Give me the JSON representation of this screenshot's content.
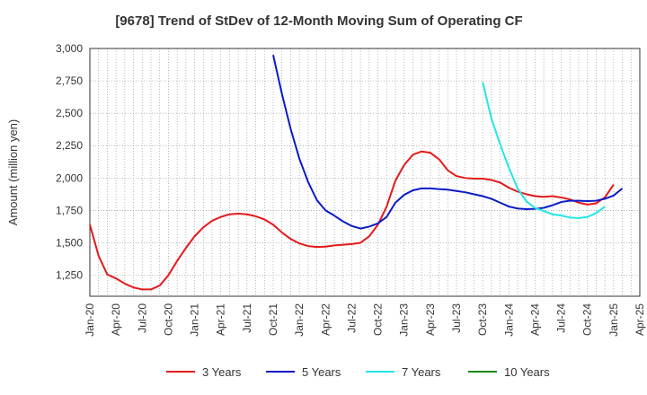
{
  "chart_data": {
    "type": "line",
    "title": "[9678]  Trend of StDev of 12-Month Moving Sum of Operating CF",
    "ylabel": "Amount (million yen)",
    "xlabel": "",
    "ylim": [
      1087.5,
      3000
    ],
    "yticks": [
      1250,
      1500,
      1750,
      2000,
      2250,
      2500,
      2750,
      3000
    ],
    "ytick_labels": [
      "1,250",
      "1,500",
      "1,750",
      "2,000",
      "2,250",
      "2,500",
      "2,750",
      "3,000"
    ],
    "xtick_labels": [
      "Jan-20",
      "Apr-20",
      "Jul-20",
      "Oct-20",
      "Jan-21",
      "Apr-21",
      "Jul-21",
      "Oct-21",
      "Jan-22",
      "Apr-22",
      "Jul-22",
      "Oct-22",
      "Jan-23",
      "Apr-23",
      "Jul-23",
      "Oct-23",
      "Jan-24",
      "Apr-24",
      "Jul-24",
      "Oct-24",
      "Jan-25",
      "Apr-25"
    ],
    "grid": true,
    "legend_position": "bottom",
    "series": [
      {
        "name": "3 Years",
        "color": "#e41a1c",
        "start": "Jan-20",
        "values": [
          1640,
          1400,
          1255,
          1225,
          1185,
          1155,
          1140,
          1140,
          1170,
          1250,
          1360,
          1460,
          1550,
          1620,
          1670,
          1700,
          1720,
          1725,
          1720,
          1705,
          1680,
          1640,
          1580,
          1530,
          1495,
          1475,
          1468,
          1470,
          1480,
          1485,
          1490,
          1500,
          1550,
          1640,
          1780,
          1980,
          2100,
          2180,
          2205,
          2195,
          2145,
          2060,
          2015,
          2000,
          1995,
          1995,
          1985,
          1965,
          1925,
          1895,
          1875,
          1860,
          1855,
          1860,
          1850,
          1835,
          1810,
          1795,
          1805,
          1850,
          1950
        ]
      },
      {
        "name": "5 Years",
        "color": "#0b1bc4",
        "start": "Oct-21",
        "values": [
          2950,
          2650,
          2380,
          2150,
          1970,
          1830,
          1750,
          1710,
          1665,
          1630,
          1610,
          1625,
          1650,
          1700,
          1810,
          1870,
          1905,
          1920,
          1920,
          1915,
          1910,
          1900,
          1890,
          1875,
          1860,
          1840,
          1810,
          1780,
          1765,
          1760,
          1762,
          1770,
          1790,
          1815,
          1825,
          1825,
          1822,
          1825,
          1840,
          1865,
          1920
        ]
      },
      {
        "name": "7 Years",
        "color": "#22e6e6",
        "start": "Oct-23",
        "values": [
          2740,
          2460,
          2260,
          2080,
          1920,
          1820,
          1770,
          1745,
          1720,
          1710,
          1695,
          1690,
          1700,
          1730,
          1780
        ]
      },
      {
        "name": "10 Years",
        "color": "#1a8a1a",
        "start": "Oct-24",
        "values": []
      }
    ]
  }
}
